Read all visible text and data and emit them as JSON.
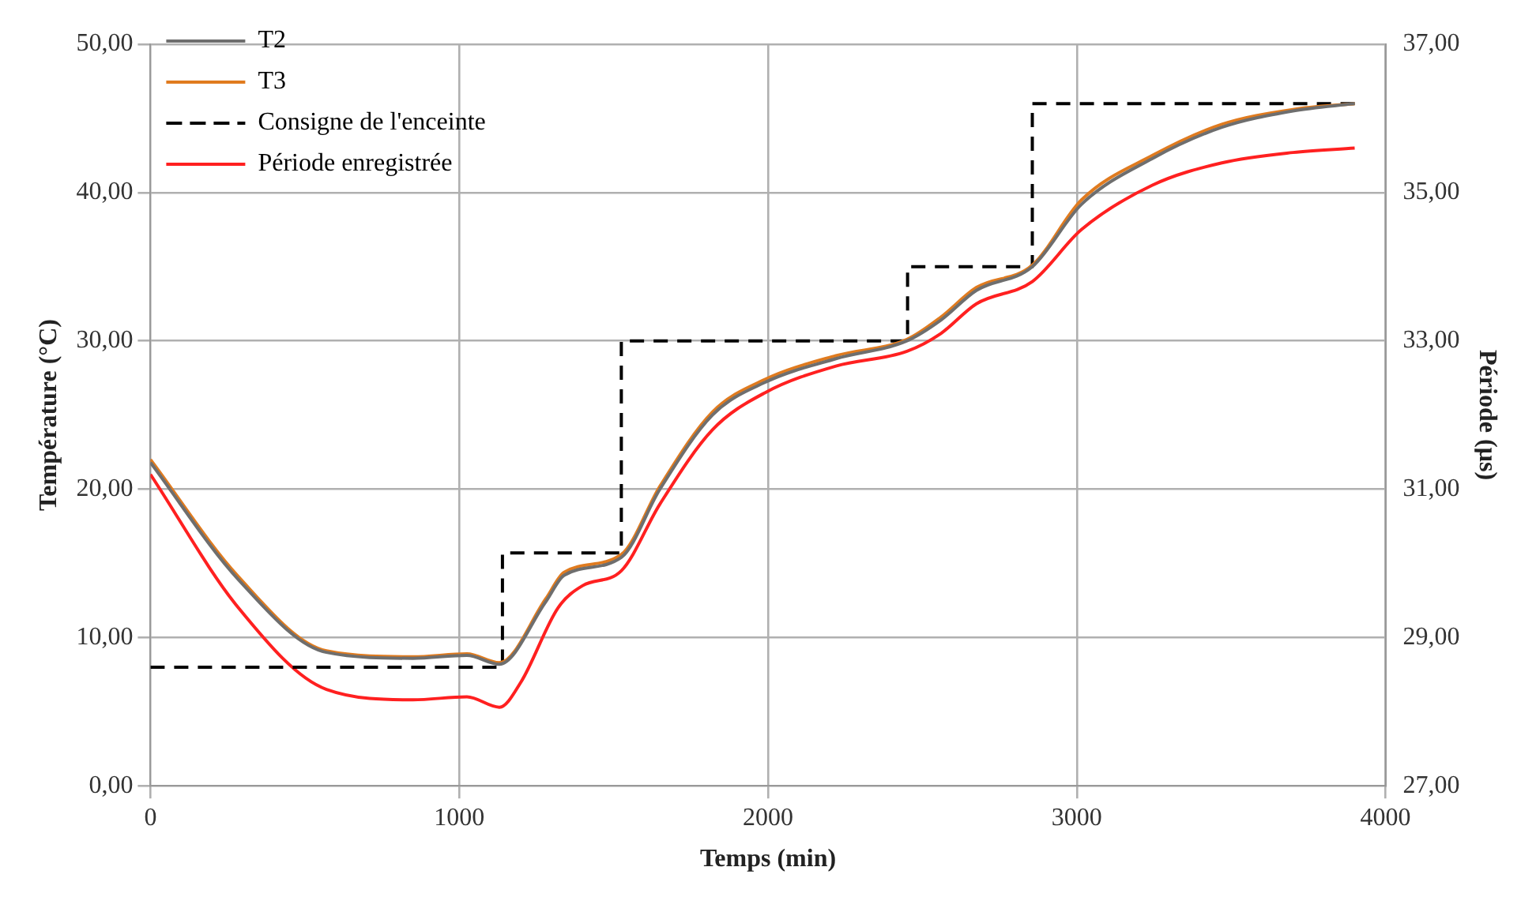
{
  "chart_data": {
    "type": "line",
    "xlabel": "Temps (min)",
    "ylabel": "Température (°C)",
    "y2label": "Période (µs)",
    "xlim": [
      0,
      4000
    ],
    "xticks": [
      0,
      1000,
      2000,
      3000,
      4000
    ],
    "ylim": [
      0,
      50
    ],
    "yticks": [
      {
        "value": 0,
        "label": "0,00"
      },
      {
        "value": 10,
        "label": "10,00"
      },
      {
        "value": 20,
        "label": "20,00"
      },
      {
        "value": 30,
        "label": "30,00"
      },
      {
        "value": 40,
        "label": "40,00"
      },
      {
        "value": 50,
        "label": "50,00"
      }
    ],
    "y2lim": [
      27,
      37
    ],
    "y2ticks": [
      {
        "value": 27,
        "label": "27,00"
      },
      {
        "value": 29,
        "label": "29,00"
      },
      {
        "value": 31,
        "label": "31,00"
      },
      {
        "value": 33,
        "label": "33,00"
      },
      {
        "value": 35,
        "label": "35,00"
      },
      {
        "value": 37,
        "label": "37,00"
      }
    ],
    "grid": true,
    "legend": "top left",
    "marker": "none",
    "series": [
      {
        "name": "T2",
        "color": "#6e6e6e",
        "line_style": "solid",
        "x": [
          0,
          285,
          570,
          850,
          1025,
          1130,
          1280,
          1340,
          1525,
          1650,
          1820,
          1990,
          2220,
          2450,
          2560,
          2675,
          2856,
          3015,
          3245,
          3470,
          3700,
          3900
        ],
        "values": [
          21.8,
          13.9,
          9.0,
          8.6,
          8.8,
          8.2,
          12.4,
          14.2,
          15.4,
          20,
          25,
          27.2,
          28.8,
          30,
          31.4,
          33.4,
          35,
          39.2,
          42.3,
          44.4,
          45.5,
          46
        ]
      },
      {
        "name": "T3",
        "color": "#e07b1f",
        "line_style": "solid",
        "x": [
          0,
          285,
          570,
          850,
          1025,
          1130,
          1280,
          1340,
          1525,
          1650,
          1820,
          1990,
          2220,
          2450,
          2560,
          2675,
          2856,
          3015,
          3245,
          3470,
          3700,
          3900
        ],
        "values": [
          22,
          14.1,
          9.1,
          8.7,
          8.9,
          8.3,
          12.6,
          14.4,
          15.6,
          20.2,
          25.2,
          27.4,
          29,
          30.1,
          31.6,
          33.6,
          35.1,
          39.5,
          42.5,
          44.6,
          45.6,
          46
        ]
      },
      {
        "name": "Consigne de l'enceinte",
        "type": "step",
        "color": "#000000",
        "line_style": "dashed",
        "x": [
          0,
          1140,
          1525,
          2452,
          2856,
          3900
        ],
        "values": [
          8,
          15.7,
          30,
          35,
          46,
          46
        ]
      },
      {
        "name": "Période enregistrée",
        "color": "#ff2020",
        "line_style": "solid",
        "axis": "y2",
        "x": [
          0,
          285,
          570,
          850,
          1025,
          1130,
          1200,
          1320,
          1400,
          1525,
          1650,
          1820,
          1990,
          2220,
          2450,
          2560,
          2675,
          2856,
          3015,
          3245,
          3470,
          3700,
          3900
        ],
        "values": [
          31.2,
          29.4,
          28.3,
          28.16,
          28.2,
          28.06,
          28.4,
          29.4,
          29.7,
          29.9,
          30.8,
          31.8,
          32.3,
          32.66,
          32.86,
          33.1,
          33.5,
          33.8,
          34.5,
          35.1,
          35.4,
          35.54,
          35.6
        ]
      }
    ]
  }
}
